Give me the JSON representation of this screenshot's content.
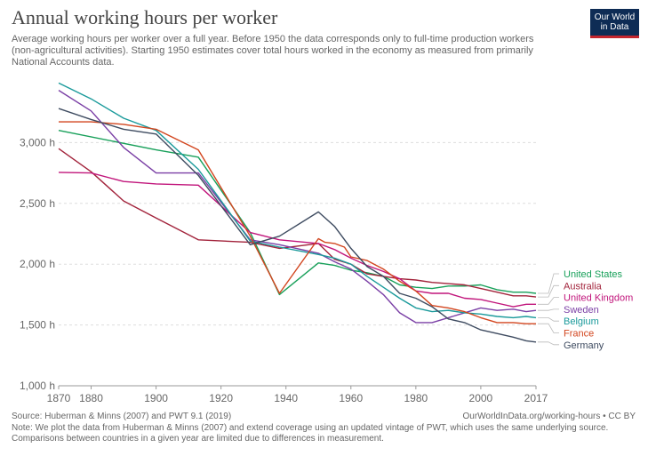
{
  "header": {
    "title": "Annual working hours per worker",
    "subtitle": "Average working hours per worker over a full year. Before 1950 the data corresponds only to full-time production workers (non-agricultural activities). Starting 1950 estimates cover total hours worked in the economy as measured from primarily National Accounts data.",
    "logo_line1": "Our World",
    "logo_line2": "in Data"
  },
  "footer": {
    "source": "Source: Huberman & Minns (2007) and PWT 9.1 (2019)",
    "url": "OurWorldInData.org/working-hours • CC BY",
    "note": "Note: We plot the data from Huberman & Minns (2007) and extend coverage using an updated vintage of PWT, which uses the same underlying source. Comparisons between countries in a given year are limited due to differences in measurement."
  },
  "colors": {
    "brand": "#0e2c55",
    "brand_accent": "#c4262e",
    "grid": "#dddddd"
  },
  "chart_data": {
    "type": "line",
    "xlim": [
      1870,
      2017
    ],
    "ylim": [
      1000,
      3500
    ],
    "x_ticks": [
      1870,
      1880,
      1900,
      1920,
      1940,
      1960,
      1980,
      2000,
      2017
    ],
    "x_tick_labels": [
      "1870",
      "1880",
      "1900",
      "1920",
      "1940",
      "1960",
      "1980",
      "2000",
      "2017"
    ],
    "y_ticks": [
      1000,
      1500,
      2000,
      2500,
      3000
    ],
    "y_tick_labels": [
      "1,000 h",
      "1,500 h",
      "2,000 h",
      "2,500 h",
      "3,000 h"
    ],
    "grid": true,
    "legend": "right",
    "series": [
      {
        "name": "United States",
        "color": "#18a05a",
        "points": [
          [
            1870,
            3100
          ],
          [
            1900,
            2940
          ],
          [
            1913,
            2880
          ],
          [
            1929,
            2260
          ],
          [
            1938,
            1750
          ],
          [
            1950,
            2010
          ],
          [
            1955,
            1990
          ],
          [
            1960,
            1950
          ],
          [
            1965,
            1930
          ],
          [
            1970,
            1900
          ],
          [
            1975,
            1830
          ],
          [
            1980,
            1810
          ],
          [
            1985,
            1800
          ],
          [
            1990,
            1820
          ],
          [
            1995,
            1820
          ],
          [
            2000,
            1830
          ],
          [
            2005,
            1790
          ],
          [
            2010,
            1770
          ],
          [
            2014,
            1770
          ],
          [
            2017,
            1760
          ]
        ]
      },
      {
        "name": "Australia",
        "color": "#a2233b",
        "points": [
          [
            1870,
            2950
          ],
          [
            1880,
            2760
          ],
          [
            1890,
            2520
          ],
          [
            1900,
            2380
          ],
          [
            1913,
            2200
          ],
          [
            1929,
            2180
          ],
          [
            1938,
            2130
          ],
          [
            1950,
            2170
          ],
          [
            1955,
            2040
          ],
          [
            1960,
            2000
          ],
          [
            1965,
            1920
          ],
          [
            1970,
            1900
          ],
          [
            1975,
            1880
          ],
          [
            1980,
            1870
          ],
          [
            1985,
            1850
          ],
          [
            1990,
            1840
          ],
          [
            1995,
            1830
          ],
          [
            2000,
            1800
          ],
          [
            2005,
            1770
          ],
          [
            2010,
            1740
          ],
          [
            2014,
            1740
          ],
          [
            2017,
            1730
          ]
        ]
      },
      {
        "name": "United Kingdom",
        "color": "#c1157b",
        "points": [
          [
            1870,
            2755
          ],
          [
            1880,
            2750
          ],
          [
            1890,
            2680
          ],
          [
            1900,
            2660
          ],
          [
            1913,
            2650
          ],
          [
            1929,
            2260
          ],
          [
            1938,
            2200
          ],
          [
            1950,
            2170
          ],
          [
            1955,
            2120
          ],
          [
            1960,
            2050
          ],
          [
            1965,
            1990
          ],
          [
            1970,
            1940
          ],
          [
            1975,
            1880
          ],
          [
            1980,
            1780
          ],
          [
            1985,
            1760
          ],
          [
            1990,
            1760
          ],
          [
            1995,
            1720
          ],
          [
            2000,
            1710
          ],
          [
            2005,
            1680
          ],
          [
            2010,
            1650
          ],
          [
            2014,
            1670
          ],
          [
            2017,
            1670
          ]
        ]
      },
      {
        "name": "Sweden",
        "color": "#7a3fa5",
        "points": [
          [
            1870,
            3430
          ],
          [
            1880,
            3260
          ],
          [
            1890,
            2960
          ],
          [
            1900,
            2750
          ],
          [
            1913,
            2750
          ],
          [
            1929,
            2200
          ],
          [
            1938,
            2160
          ],
          [
            1950,
            2090
          ],
          [
            1955,
            2020
          ],
          [
            1960,
            1960
          ],
          [
            1965,
            1860
          ],
          [
            1970,
            1750
          ],
          [
            1975,
            1600
          ],
          [
            1980,
            1520
          ],
          [
            1985,
            1520
          ],
          [
            1990,
            1560
          ],
          [
            1995,
            1600
          ],
          [
            2000,
            1640
          ],
          [
            2005,
            1620
          ],
          [
            2010,
            1630
          ],
          [
            2014,
            1610
          ],
          [
            2017,
            1620
          ]
        ]
      },
      {
        "name": "Belgium",
        "color": "#1a9a9b",
        "points": [
          [
            1870,
            3490
          ],
          [
            1880,
            3360
          ],
          [
            1890,
            3200
          ],
          [
            1900,
            3100
          ],
          [
            1913,
            2780
          ],
          [
            1929,
            2190
          ],
          [
            1938,
            2140
          ],
          [
            1950,
            2080
          ],
          [
            1955,
            2050
          ],
          [
            1960,
            2000
          ],
          [
            1965,
            1900
          ],
          [
            1970,
            1810
          ],
          [
            1975,
            1720
          ],
          [
            1980,
            1640
          ],
          [
            1985,
            1610
          ],
          [
            1990,
            1620
          ],
          [
            1995,
            1600
          ],
          [
            2000,
            1590
          ],
          [
            2005,
            1570
          ],
          [
            2010,
            1560
          ],
          [
            2014,
            1570
          ],
          [
            2017,
            1560
          ]
        ]
      },
      {
        "name": "France",
        "color": "#d2451e",
        "points": [
          [
            1870,
            3170
          ],
          [
            1880,
            3170
          ],
          [
            1890,
            3150
          ],
          [
            1900,
            3110
          ],
          [
            1913,
            2940
          ],
          [
            1929,
            2230
          ],
          [
            1938,
            1760
          ],
          [
            1950,
            2210
          ],
          [
            1952,
            2180
          ],
          [
            1955,
            2170
          ],
          [
            1958,
            2140
          ],
          [
            1960,
            2060
          ],
          [
            1965,
            2030
          ],
          [
            1970,
            1960
          ],
          [
            1975,
            1860
          ],
          [
            1980,
            1780
          ],
          [
            1985,
            1660
          ],
          [
            1990,
            1640
          ],
          [
            1995,
            1610
          ],
          [
            2000,
            1560
          ],
          [
            2005,
            1520
          ],
          [
            2010,
            1520
          ],
          [
            2014,
            1510
          ],
          [
            2017,
            1510
          ]
        ]
      },
      {
        "name": "Germany",
        "color": "#3e4b60",
        "points": [
          [
            1870,
            3280
          ],
          [
            1880,
            3190
          ],
          [
            1890,
            3110
          ],
          [
            1900,
            3070
          ],
          [
            1913,
            2730
          ],
          [
            1929,
            2160
          ],
          [
            1938,
            2230
          ],
          [
            1950,
            2430
          ],
          [
            1955,
            2310
          ],
          [
            1960,
            2130
          ],
          [
            1965,
            1980
          ],
          [
            1970,
            1900
          ],
          [
            1975,
            1760
          ],
          [
            1980,
            1720
          ],
          [
            1985,
            1650
          ],
          [
            1990,
            1550
          ],
          [
            1995,
            1520
          ],
          [
            2000,
            1460
          ],
          [
            2005,
            1430
          ],
          [
            2010,
            1400
          ],
          [
            2014,
            1370
          ],
          [
            2017,
            1360
          ]
        ]
      }
    ]
  }
}
